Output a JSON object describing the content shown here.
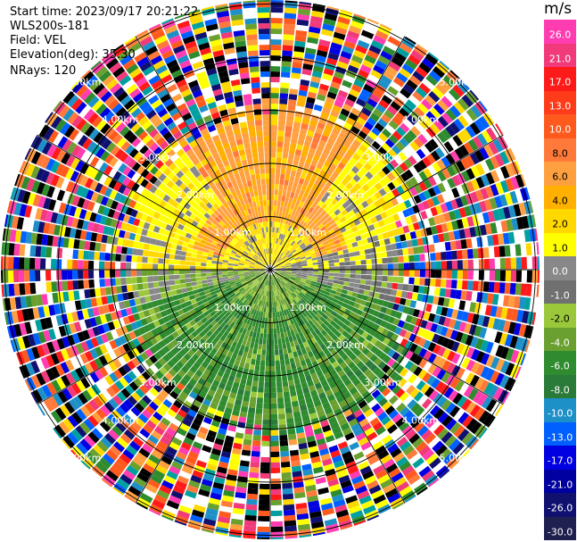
{
  "info": {
    "start_time": "Start time: 2023/09/17 20:21:22",
    "instrument": "WLS200s-181",
    "field": "Field: VEL",
    "elevation": "Elevation(deg): 35.30",
    "nrays": "NRays: 120"
  },
  "colorbar": {
    "unit": "m/s",
    "ticks": [
      "26.0",
      "21.0",
      "17.0",
      "13.0",
      "10.0",
      "8.0",
      "6.0",
      "4.0",
      "2.0",
      "1.0",
      "0.0",
      "-1.0",
      "-2.0",
      "-4.0",
      "-6.0",
      "-8.0",
      "-10.0",
      "-13.0",
      "-17.0",
      "-21.0",
      "-26.0",
      "-30.0"
    ],
    "colors": [
      "#ff3db0",
      "#f03a7a",
      "#ff1a1a",
      "#ff3c1a",
      "#ff5a1e",
      "#ff7a3a",
      "#ffa040",
      "#ffb000",
      "#ffd800",
      "#ffff00",
      "#888888",
      "#707070",
      "#9ac83a",
      "#6aa030",
      "#2e8b2e",
      "#2a7a3a",
      "#1e90c8",
      "#0060ff",
      "#0000e0",
      "#0000a0",
      "#101070",
      "#202050"
    ]
  },
  "range_labels": {
    "r1": "1.00km",
    "r2": "2.00km",
    "r3": "3.00km",
    "r4": "4.00km",
    "r5": "5.00km"
  }
}
